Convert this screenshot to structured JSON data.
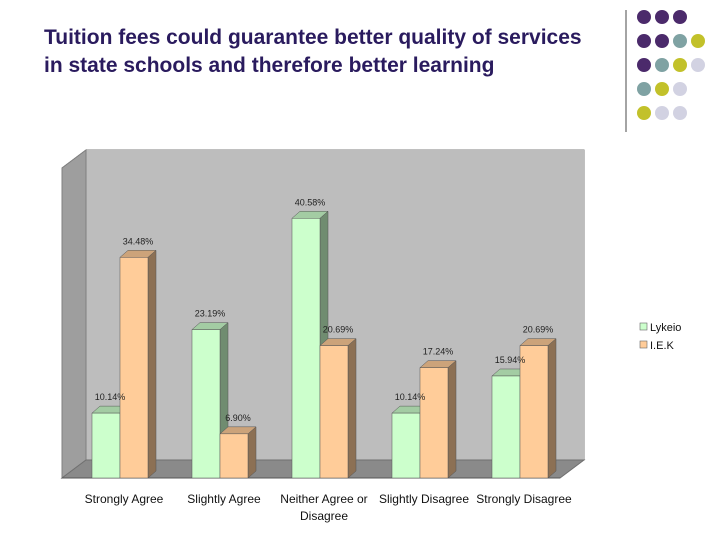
{
  "slide": {
    "title": "Tuition fees could guarantee better quality of services in state schools and therefore better learning"
  },
  "colors": {
    "title": "#2a1b5e",
    "deco_purple": "#4b2a6b",
    "deco_teal": "#7fa2a3",
    "deco_yellow": "#c2c12a",
    "deco_lavender": "#d2d2e2"
  },
  "chart_data": {
    "type": "bar",
    "style": "3d-clustered-column",
    "categories": [
      "Strongly Agree",
      "Slightly Agree",
      "Neither Agree or Disagree",
      "Slightly Disagree",
      "Strongly Disagree"
    ],
    "category_lines": [
      [
        "Strongly Agree"
      ],
      [
        "Slightly Agree"
      ],
      [
        "Neither Agree or",
        "Disagree"
      ],
      [
        "Slightly Disagree"
      ],
      [
        "Strongly Disagree"
      ]
    ],
    "series": [
      {
        "name": "Lykeio",
        "color": "#ccffcc",
        "values": [
          10.14,
          23.19,
          40.58,
          10.14,
          15.94
        ],
        "labels": [
          "10.14%",
          "23.19%",
          "40.58%",
          "10.14%",
          "15.94%"
        ]
      },
      {
        "name": "I.E.K",
        "color": "#ffcc99",
        "values": [
          34.48,
          6.9,
          20.69,
          17.24,
          20.69
        ],
        "labels": [
          "34.48%",
          "6.90%",
          "20.69%",
          "17.24%",
          "20.69%"
        ]
      }
    ],
    "ylim": [
      0,
      45
    ],
    "grid": false,
    "legend_position": "right"
  }
}
